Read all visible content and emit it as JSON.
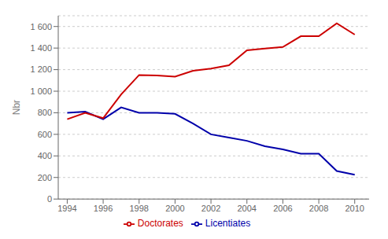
{
  "chart_data": {
    "type": "line",
    "y_label": "Nbr",
    "x": [
      1994,
      1995,
      1996,
      1997,
      1998,
      1999,
      2000,
      2001,
      2002,
      2003,
      2004,
      2005,
      2006,
      2007,
      2008,
      2009,
      2010
    ],
    "series": [
      {
        "name": "Licentiates",
        "color": "#0000AA",
        "values": [
          800,
          810,
          740,
          850,
          800,
          800,
          790,
          700,
          600,
          570,
          540,
          490,
          460,
          420,
          420,
          260,
          225
        ]
      },
      {
        "name": "Doctorates",
        "color": "#CC0000",
        "values": [
          740,
          800,
          750,
          970,
          1150,
          1145,
          1135,
          1190,
          1210,
          1240,
          1380,
          1395,
          1410,
          1510,
          1510,
          1630,
          1525
        ]
      }
    ],
    "xlim": [
      1993.5,
      2010.8
    ],
    "xticks": [
      1994,
      1996,
      1998,
      2000,
      2002,
      2004,
      2006,
      2008,
      2010
    ],
    "ylim": [
      0,
      1700
    ],
    "yticks": [
      0,
      200,
      400,
      600,
      800,
      {
        "value": 1000,
        "label": "1 000"
      },
      {
        "value": 1200,
        "label": "1 200"
      },
      {
        "value": 1400,
        "label": "1 400"
      },
      {
        "value": 1600,
        "label": "1 600"
      }
    ],
    "grid": "y",
    "legend": "bottom"
  }
}
